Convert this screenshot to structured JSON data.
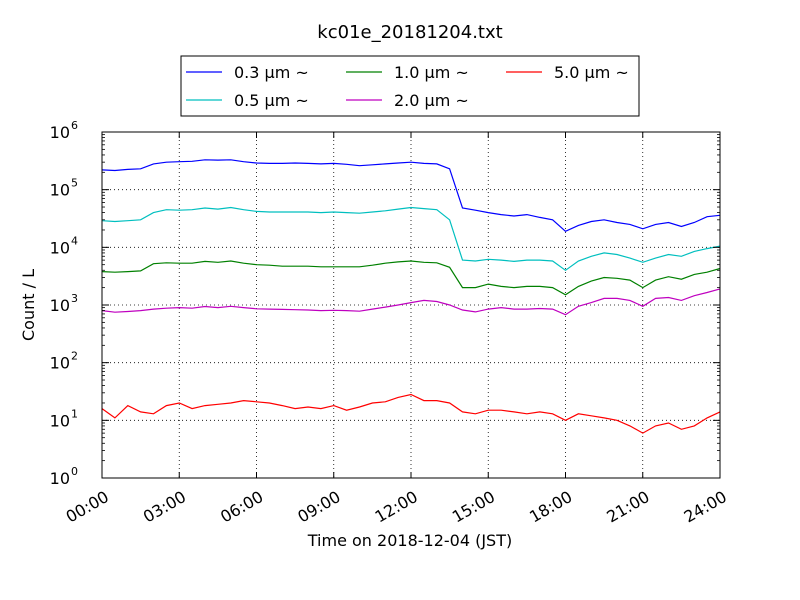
{
  "chart_data": {
    "type": "line",
    "title": "kc01e_20181204.txt",
    "xlabel": "Time on 2018-12-04 (JST)",
    "ylabel": "Count / L",
    "yscale": "log",
    "ylim": [
      1,
      1000000
    ],
    "xlim": [
      "00:00",
      "24:00"
    ],
    "grid": true,
    "legend_placement": "top-center",
    "x_ticks": [
      "00:00",
      "03:00",
      "06:00",
      "09:00",
      "12:00",
      "15:00",
      "18:00",
      "21:00",
      "24:00"
    ],
    "y_ticks": [
      {
        "base": "10",
        "exp": "0"
      },
      {
        "base": "10",
        "exp": "1"
      },
      {
        "base": "10",
        "exp": "2"
      },
      {
        "base": "10",
        "exp": "3"
      },
      {
        "base": "10",
        "exp": "4"
      },
      {
        "base": "10",
        "exp": "5"
      },
      {
        "base": "10",
        "exp": "6"
      }
    ],
    "x": [
      "00:00",
      "00:30",
      "01:00",
      "01:30",
      "02:00",
      "02:30",
      "03:00",
      "03:30",
      "04:00",
      "04:30",
      "05:00",
      "05:30",
      "06:00",
      "06:30",
      "07:00",
      "07:30",
      "08:00",
      "08:30",
      "09:00",
      "09:30",
      "10:00",
      "10:30",
      "11:00",
      "11:30",
      "12:00",
      "12:30",
      "13:00",
      "13:30",
      "14:00",
      "14:30",
      "15:00",
      "15:30",
      "16:00",
      "16:30",
      "17:00",
      "17:30",
      "18:00",
      "18:30",
      "19:00",
      "19:30",
      "20:00",
      "20:30",
      "21:00",
      "21:30",
      "22:00",
      "22:30",
      "23:00",
      "23:30",
      "24:00"
    ],
    "series": [
      {
        "name": "0.3 μm ~",
        "color": "#0000ff",
        "values": [
          220000,
          215000,
          225000,
          230000,
          280000,
          300000,
          305000,
          310000,
          330000,
          325000,
          330000,
          305000,
          290000,
          285000,
          285000,
          290000,
          285000,
          280000,
          285000,
          275000,
          260000,
          270000,
          280000,
          290000,
          300000,
          285000,
          280000,
          230000,
          48000,
          44000,
          40000,
          37000,
          35000,
          37000,
          33000,
          30000,
          19000,
          24000,
          28000,
          30000,
          27000,
          25000,
          21000,
          25000,
          27000,
          23000,
          27000,
          34000,
          36000
        ]
      },
      {
        "name": "0.5 μm ~",
        "color": "#00bfbf",
        "values": [
          29000,
          28000,
          29000,
          30000,
          40000,
          45000,
          44000,
          45000,
          48000,
          46000,
          49000,
          45000,
          42000,
          41000,
          41000,
          41000,
          41000,
          40000,
          41000,
          40000,
          39000,
          41000,
          43000,
          46000,
          49000,
          47000,
          45000,
          30000,
          6000,
          5800,
          6200,
          6000,
          5700,
          6000,
          6000,
          5800,
          4000,
          5800,
          7000,
          8000,
          7500,
          6500,
          5500,
          6500,
          7500,
          7000,
          8500,
          9500,
          10500
        ]
      },
      {
        "name": "1.0 μm ~",
        "color": "#008000",
        "values": [
          3800,
          3700,
          3800,
          3900,
          5200,
          5400,
          5300,
          5300,
          5700,
          5500,
          5800,
          5300,
          5000,
          4900,
          4700,
          4700,
          4700,
          4600,
          4600,
          4600,
          4600,
          4900,
          5300,
          5600,
          5800,
          5500,
          5400,
          4500,
          2000,
          2000,
          2300,
          2100,
          2000,
          2100,
          2100,
          2000,
          1500,
          2100,
          2600,
          3000,
          2900,
          2700,
          2000,
          2700,
          3100,
          2800,
          3400,
          3700,
          4300
        ]
      },
      {
        "name": "2.0 μm ~",
        "color": "#bf00bf",
        "values": [
          800,
          750,
          770,
          800,
          850,
          880,
          900,
          880,
          940,
          900,
          950,
          900,
          860,
          850,
          840,
          830,
          820,
          800,
          810,
          800,
          780,
          850,
          920,
          1000,
          1100,
          1200,
          1150,
          1000,
          820,
          760,
          850,
          900,
          850,
          850,
          870,
          850,
          680,
          950,
          1100,
          1300,
          1300,
          1200,
          950,
          1300,
          1350,
          1200,
          1450,
          1650,
          1900
        ]
      },
      {
        "name": "5.0 μm ~",
        "color": "#ff0000",
        "values": [
          16,
          11,
          18,
          14,
          13,
          18,
          20,
          16,
          18,
          19,
          20,
          22,
          21,
          20,
          18,
          16,
          17,
          16,
          18,
          15,
          17,
          20,
          21,
          25,
          28,
          22,
          22,
          20,
          14,
          13,
          15,
          15,
          14,
          13,
          14,
          13,
          10,
          13,
          12,
          11,
          10,
          8,
          6,
          8,
          9,
          7,
          8,
          11,
          14
        ]
      }
    ]
  }
}
